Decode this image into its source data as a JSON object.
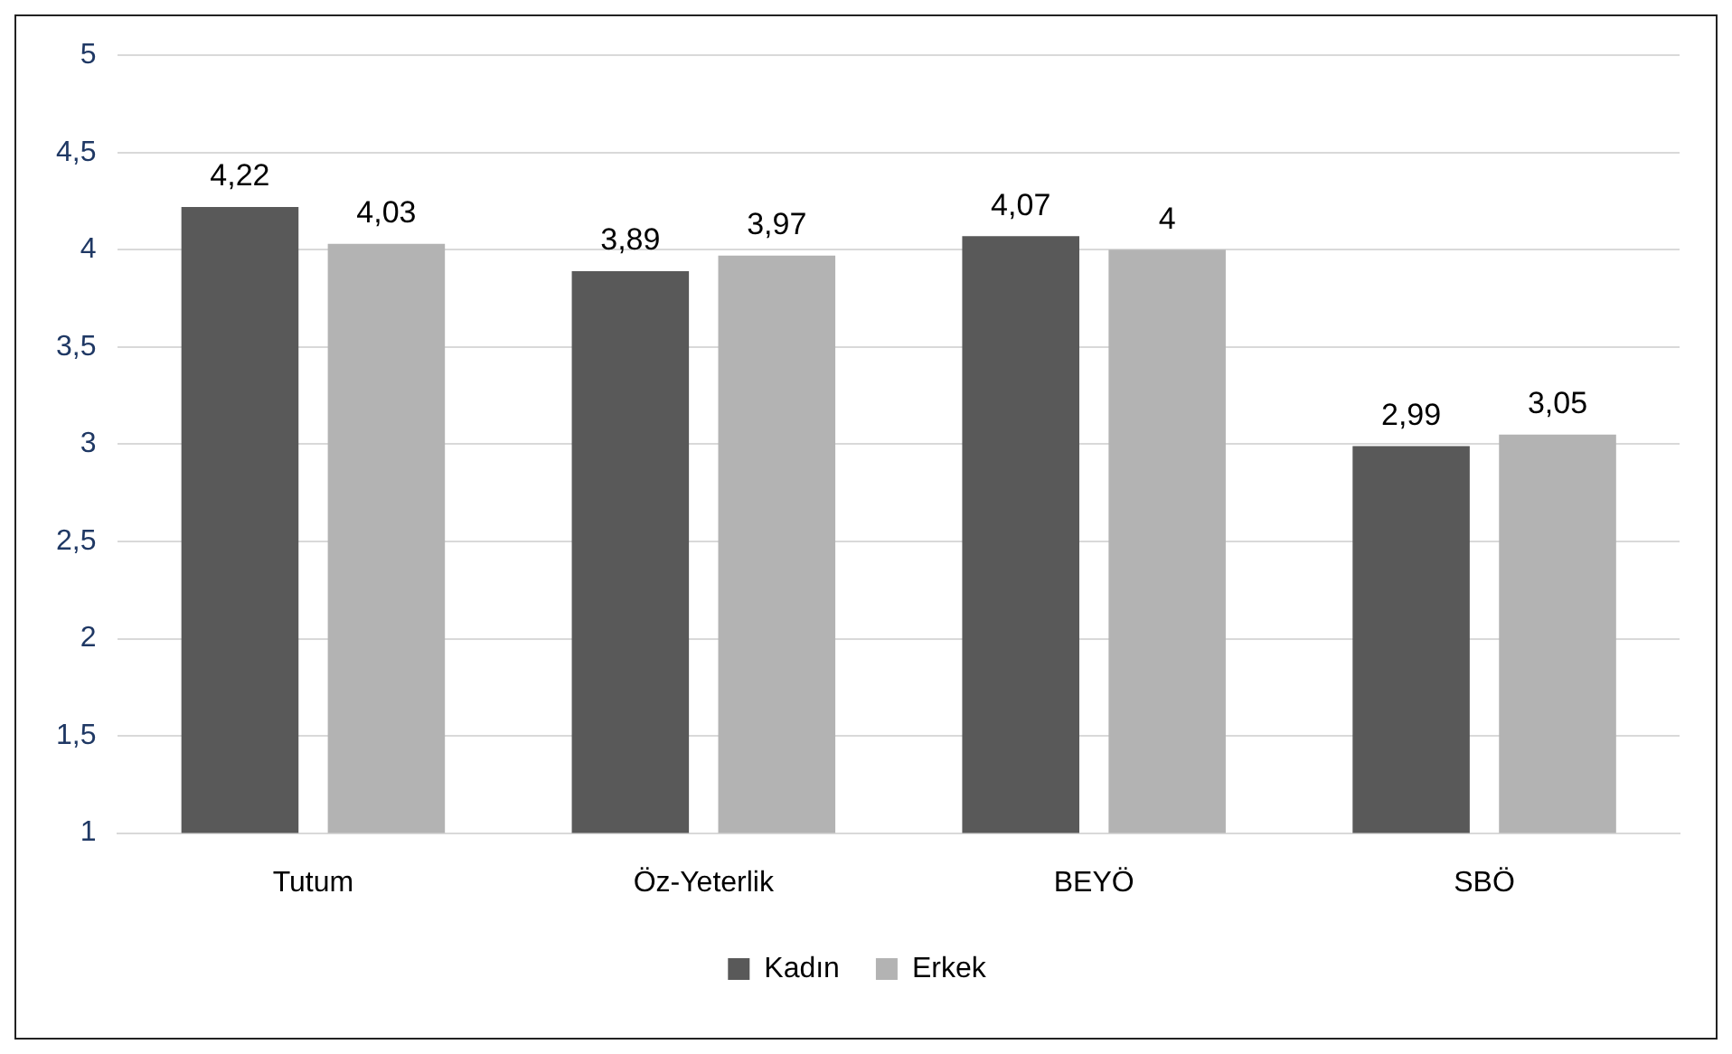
{
  "chart_data": {
    "type": "bar",
    "categories": [
      "Tutum",
      "Öz-Yeterlik",
      "BEYÖ",
      "SBÖ"
    ],
    "series": [
      {
        "name": "Kadın",
        "color": "#595959",
        "values": [
          4.22,
          3.89,
          4.07,
          2.99
        ],
        "value_labels": [
          "4,22",
          "3,89",
          "4,07",
          "2,99"
        ]
      },
      {
        "name": "Erkek",
        "color": "#b3b3b3",
        "values": [
          4.03,
          3.97,
          4,
          3.05
        ],
        "value_labels": [
          "4,03",
          "3,97",
          "4",
          "3,05"
        ]
      }
    ],
    "ylim": [
      1,
      5
    ],
    "yticks": [
      1,
      {
        "value": 1.5,
        "label": "1,5"
      },
      2,
      {
        "value": 2.5,
        "label": "2,5"
      },
      3,
      {
        "value": 3.5,
        "label": "3,5"
      },
      4,
      {
        "value": 4.5,
        "label": "4,5"
      },
      5
    ],
    "grid": "y",
    "legend": "bottom"
  }
}
